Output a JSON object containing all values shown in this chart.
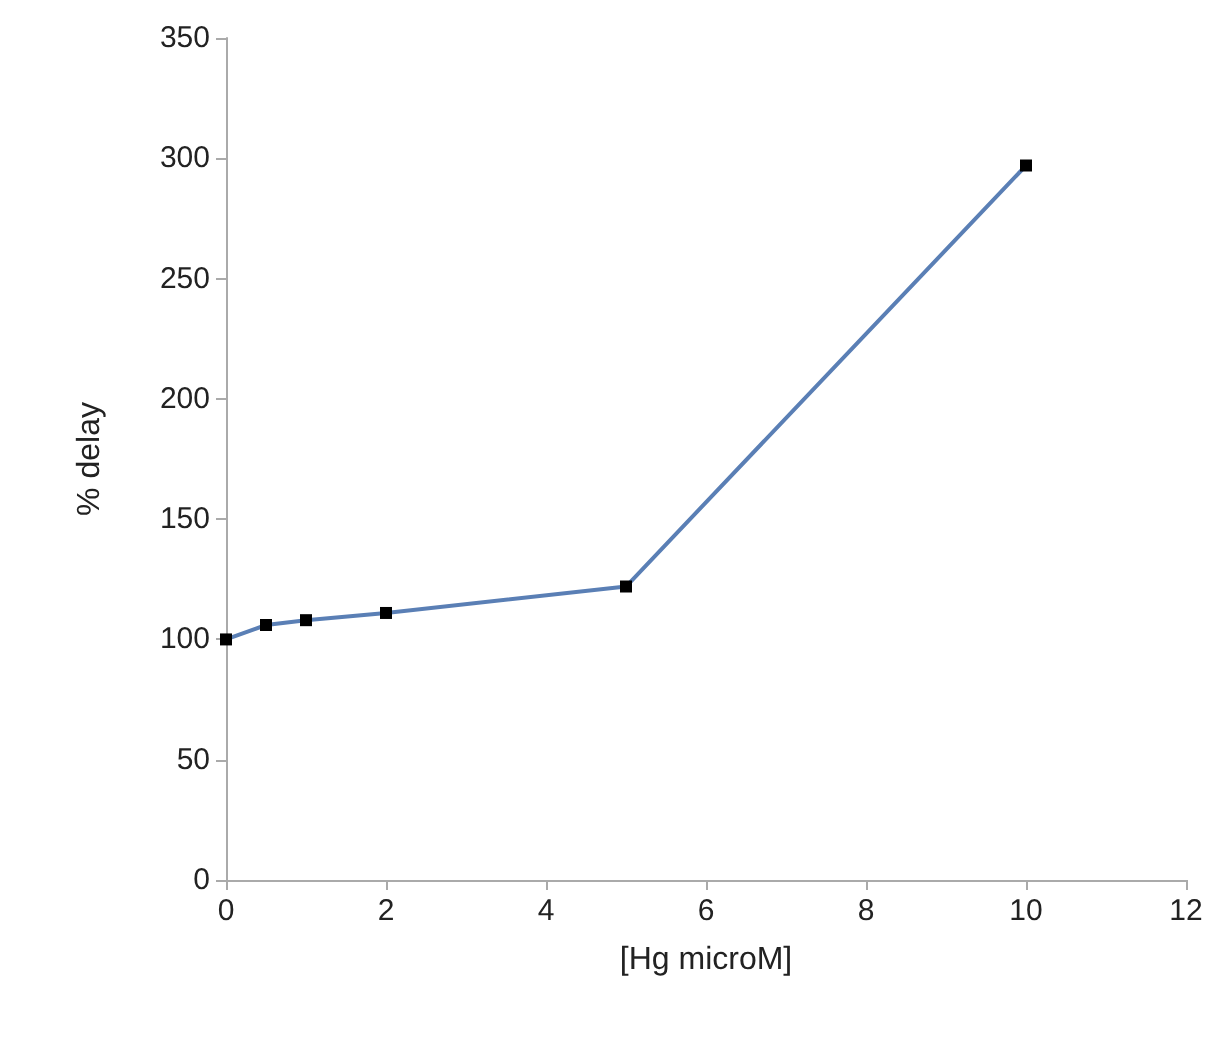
{
  "chart_data": {
    "type": "line",
    "xlabel": "[Hg microM]",
    "ylabel": "% delay",
    "x": [
      0,
      0.5,
      1,
      2,
      5,
      10
    ],
    "series": [
      {
        "color": "#5a7fb5",
        "values": [
          100,
          106,
          108,
          111,
          122,
          297
        ]
      }
    ],
    "xlim": [
      0,
      12
    ],
    "xticks": [
      0,
      2,
      4,
      6,
      8,
      10,
      12
    ],
    "ylim": [
      0,
      350
    ],
    "yticks": [
      0,
      50,
      100,
      150,
      200,
      250,
      300,
      350
    ],
    "grid": false,
    "marker": "square",
    "line_style": "solid"
  }
}
